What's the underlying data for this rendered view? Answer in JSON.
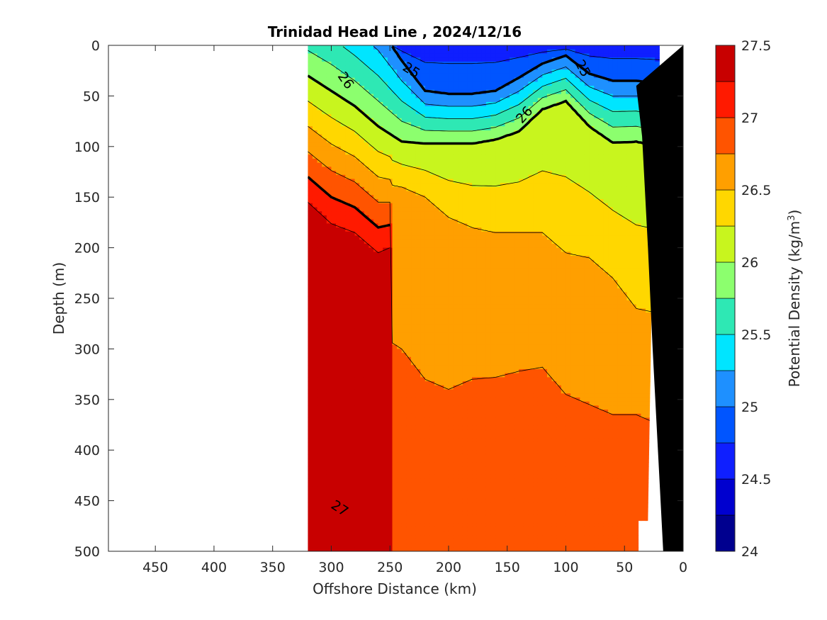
{
  "chart_data": {
    "type": "contour",
    "title": "Trinidad Head Line , 2024/12/16",
    "xlabel": "Offshore Distance (km)",
    "ylabel": "Depth (m)",
    "colorbar_label": "Potential Density (kg/m",
    "colorbar_label_sup": "3",
    "colorbar_label_end": ")",
    "xlim": [
      490,
      0
    ],
    "ylim": [
      0,
      500
    ],
    "x_reversed": true,
    "y_reversed": true,
    "xticks": [
      450,
      400,
      350,
      300,
      250,
      200,
      150,
      100,
      50,
      0
    ],
    "yticks": [
      0,
      50,
      100,
      150,
      200,
      250,
      300,
      350,
      400,
      450,
      500
    ],
    "colorbar_range": [
      24,
      27.5
    ],
    "colorbar_ticks": [
      "24",
      "24.5",
      "25",
      "25.5",
      "26",
      "26.5",
      "27",
      "27.5"
    ],
    "colorbar_tick_values": [
      24,
      24.5,
      25,
      25.5,
      26,
      26.5,
      27,
      27.5
    ],
    "contour_levels": [
      24,
      24.25,
      24.5,
      24.75,
      25,
      25.25,
      25.5,
      25.75,
      26,
      26.25,
      26.5,
      26.75,
      27,
      27.25,
      27.5
    ],
    "level_colors": [
      "#00008f",
      "#0000cf",
      "#0f1fff",
      "#0055ff",
      "#1e90ff",
      "#00e5ff",
      "#2ee8b4",
      "#8cff6e",
      "#c8f51e",
      "#ffd700",
      "#ff9f00",
      "#ff5400",
      "#ff1a00",
      "#c80000"
    ],
    "contour_labels": [
      {
        "text": "25",
        "x": 232,
        "y": 25,
        "rot": 32
      },
      {
        "text": "25",
        "x": 86,
        "y": 23,
        "rot": 62
      },
      {
        "text": "26",
        "x": 288,
        "y": 35,
        "rot": 55
      },
      {
        "text": "26",
        "x": 135,
        "y": 69,
        "rot": -48
      },
      {
        "text": "27",
        "x": 293,
        "y": 458,
        "rot": 33
      }
    ],
    "data_extent_km": [
      320,
      20
    ],
    "max_depth_m": 500
  }
}
